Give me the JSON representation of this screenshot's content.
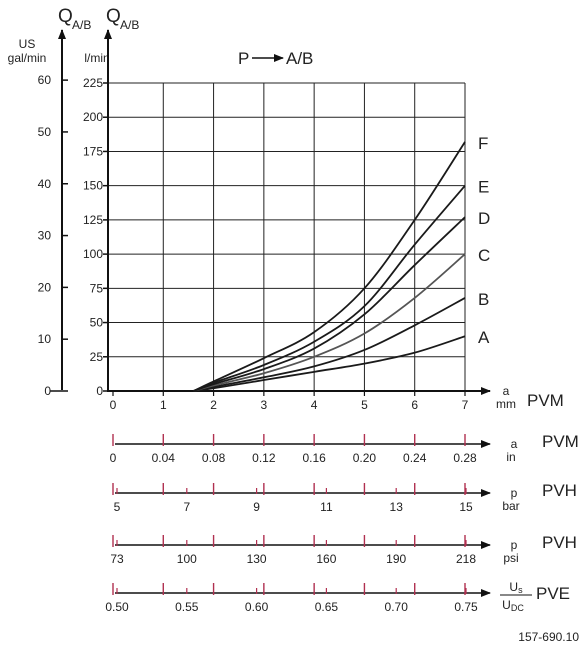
{
  "chart_data": {
    "type": "line",
    "title": "P→A/B",
    "x_values": [
      1.6,
      2,
      3,
      4,
      5,
      6,
      7
    ],
    "xlim": [
      0,
      7
    ],
    "ylim_l_min": [
      0,
      225
    ],
    "series": [
      {
        "name": "A",
        "values": [
          0,
          2,
          8,
          14,
          20,
          28,
          40
        ]
      },
      {
        "name": "B",
        "values": [
          0,
          3,
          10,
          18,
          30,
          48,
          68
        ]
      },
      {
        "name": "C",
        "values": [
          0,
          4,
          13,
          25,
          42,
          68,
          100
        ]
      },
      {
        "name": "D",
        "values": [
          0,
          5,
          16,
          31,
          56,
          92,
          127
        ]
      },
      {
        "name": "E",
        "values": [
          0,
          6,
          19,
          36,
          62,
          107,
          150
        ]
      },
      {
        "name": "F",
        "values": [
          0,
          7,
          24,
          43,
          75,
          125,
          182
        ]
      }
    ],
    "colors": {
      "curves": "#1a1a1a",
      "curve_c": "#555555",
      "ticks": "#b03050",
      "axes": "#111111"
    }
  },
  "labels": {
    "title_p": "P",
    "title_ab": "A/B",
    "q_main": "Q",
    "q_sub": "A/B",
    "us_unit_1": "US",
    "us_unit_2": "gal/min",
    "lmin_unit": "l/min",
    "figure_id": "157-690.10"
  },
  "axes": {
    "us_ticks": [
      "0",
      "10",
      "20",
      "30",
      "40",
      "50",
      "60"
    ],
    "lmin_ticks": [
      "0",
      "25",
      "50",
      "75",
      "100",
      "125",
      "150",
      "175",
      "200",
      "225"
    ],
    "scales": [
      {
        "id": "pvm_mm",
        "unit": "mm",
        "unit_top": "a",
        "label": "PVM",
        "ticks": [
          "0",
          "1",
          "2",
          "3",
          "4",
          "5",
          "6",
          "7"
        ]
      },
      {
        "id": "pvm_in",
        "unit": "in",
        "unit_top": "a",
        "label": "PVM",
        "ticks": [
          "0",
          "0.04",
          "0.08",
          "0.12",
          "0.16",
          "0.20",
          "0.24",
          "0.28"
        ]
      },
      {
        "id": "pvh_bar",
        "unit": "bar",
        "unit_top": "p",
        "label": "PVH",
        "ticks": [
          "5",
          "7",
          "9",
          "11",
          "13",
          "15"
        ]
      },
      {
        "id": "pvh_psi",
        "unit": "psi",
        "unit_top": "p",
        "label": "PVH",
        "ticks": [
          "73",
          "100",
          "130",
          "160",
          "190",
          "218"
        ]
      },
      {
        "id": "pve",
        "unit_num": "U",
        "unit_num_sub": "s",
        "unit_den": "U",
        "unit_den_sub": "DC",
        "label": "PVE",
        "ticks": [
          "0.50",
          "0.55",
          "0.60",
          "0.65",
          "0.70",
          "0.75"
        ]
      }
    ]
  }
}
